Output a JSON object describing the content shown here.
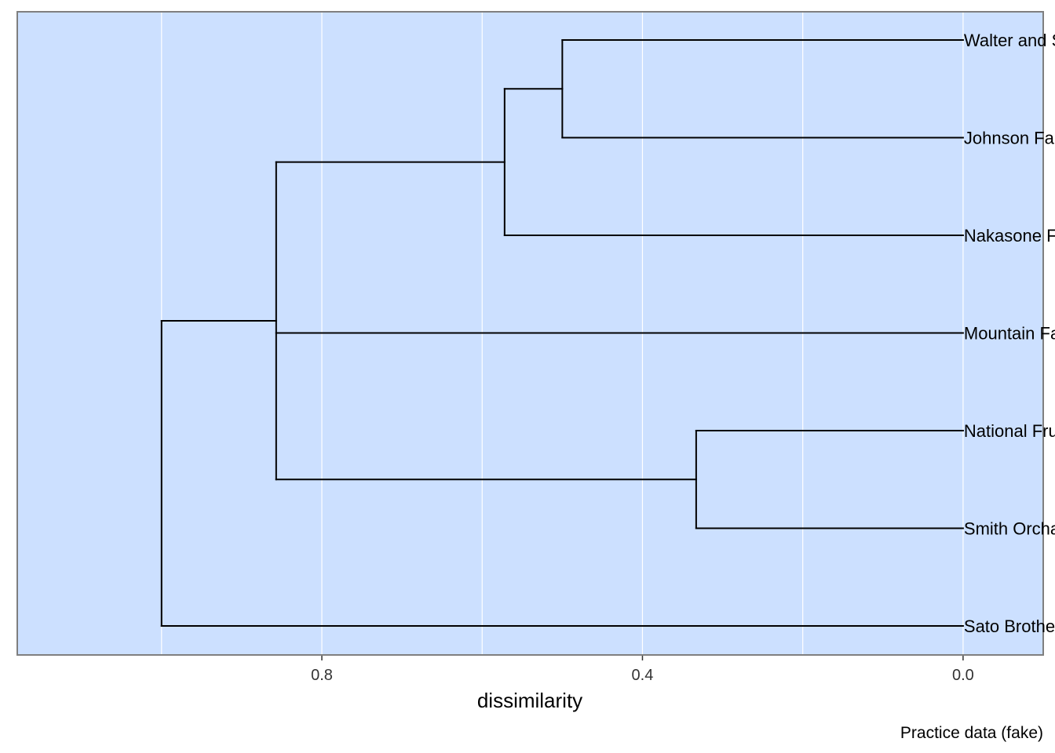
{
  "chart_data": {
    "type": "dendrogram",
    "orientation": "horizontal",
    "xlabel": "dissimilarity",
    "caption": "Practice data (fake)",
    "x_reversed": true,
    "xlim": [
      1.18,
      -0.1
    ],
    "x_ticks": [
      0.8,
      0.4,
      0.0
    ],
    "x_tick_labels": [
      "0.8",
      "0.4",
      "0.0"
    ],
    "grid": true,
    "colors": {
      "panel": "#cce0ff",
      "grid": "#ffffff",
      "lines": "#000000",
      "border": "#7f7f7f"
    },
    "leaves": [
      "Walter and Sons",
      "Johnson Farms",
      "Nakasone Farms",
      "Mountain Farm",
      "National Fruit",
      "Smith Orchards",
      "Sato Brothers"
    ],
    "merges": [
      {
        "id": "m1",
        "children": [
          "Walter and Sons",
          "Johnson Farms"
        ],
        "height": 0.5
      },
      {
        "id": "m2",
        "children": [
          "m1",
          "Nakasone Farms"
        ],
        "height": 0.572
      },
      {
        "id": "m3",
        "children": [
          "National Fruit",
          "Smith Orchards"
        ],
        "height": 0.333
      },
      {
        "id": "m4",
        "children": [
          "m2",
          "Mountain Farm",
          "m3"
        ],
        "height": 0.857
      },
      {
        "id": "m5",
        "children": [
          "m4",
          "Sato Brothers"
        ],
        "height": 1.0
      }
    ]
  }
}
